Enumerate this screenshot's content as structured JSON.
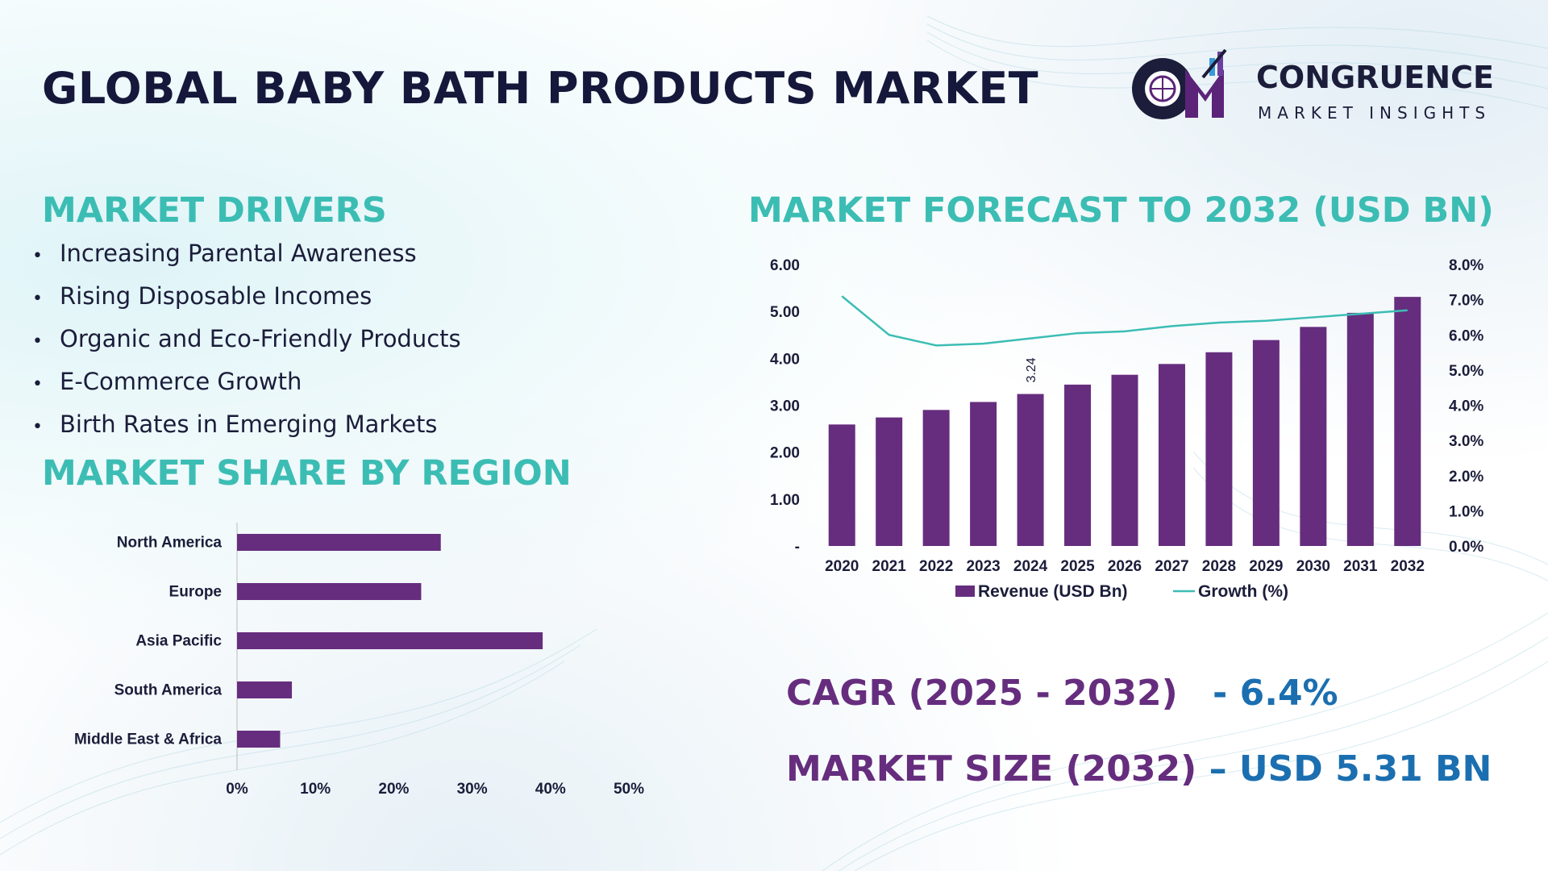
{
  "header": {
    "title": "GLOBAL BABY BATH PRODUCTS MARKET"
  },
  "logo": {
    "line1": "CONGRUENCE",
    "line2": "MARKET INSIGHTS",
    "mark_color": "#5b2479"
  },
  "colors": {
    "accent": "#3cbdb4",
    "bar": "#662d7e",
    "growth_line": "#3cbdb4",
    "stat_value": "#1b6fb0",
    "title": "#15183a"
  },
  "drivers": {
    "title": "MARKET DRIVERS",
    "items": [
      "Increasing Parental Awareness",
      "Rising Disposable Incomes",
      "Organic and Eco-Friendly Products",
      "E-Commerce Growth",
      "Birth Rates in Emerging Markets"
    ]
  },
  "region": {
    "title": "MARKET SHARE BY REGION"
  },
  "forecast": {
    "title": "MARKET FORECAST TO 2032 (USD BN)"
  },
  "stats": {
    "cagr_label": "CAGR (2025 - 2032)",
    "cagr_value": "- 6.4%",
    "size_label": "MARKET SIZE (2032)",
    "size_value": "– USD 5.31 BN"
  },
  "chart_data": [
    {
      "type": "bar",
      "orientation": "horizontal",
      "categories": [
        "North America",
        "Europe",
        "Asia Pacific",
        "South America",
        "Middle East & Africa"
      ],
      "values": [
        26,
        23.5,
        39,
        7,
        5.5
      ],
      "xlim": [
        0,
        50
      ],
      "x_ticks": [
        "0%",
        "10%",
        "20%",
        "30%",
        "40%",
        "50%"
      ],
      "x_tick_values": [
        0,
        10,
        20,
        30,
        40,
        50
      ],
      "grid": false
    },
    {
      "type": "bar",
      "categories": [
        "2020",
        "2021",
        "2022",
        "2023",
        "2024",
        "2025",
        "2026",
        "2027",
        "2028",
        "2029",
        "2030",
        "2031",
        "2032"
      ],
      "series": [
        {
          "name": "Revenue (USD Bn)",
          "type": "bar",
          "axis": "left",
          "values": [
            2.59,
            2.74,
            2.9,
            3.07,
            3.24,
            3.44,
            3.65,
            3.88,
            4.13,
            4.39,
            4.67,
            4.97,
            5.31
          ]
        },
        {
          "name": "Growth (%)",
          "type": "line",
          "axis": "right",
          "values": [
            7.1,
            6.0,
            5.7,
            5.75,
            5.9,
            6.05,
            6.1,
            6.25,
            6.35,
            6.4,
            6.5,
            6.6,
            6.7
          ]
        }
      ],
      "data_labels": [
        {
          "index": 4,
          "text": "3.24"
        }
      ],
      "ylim_left": [
        0,
        6
      ],
      "y_left_ticks": [
        "-",
        "1.00",
        "2.00",
        "3.00",
        "4.00",
        "5.00",
        "6.00"
      ],
      "ylim_right": [
        0,
        8
      ],
      "y_right_ticks": [
        "0.0%",
        "1.0%",
        "2.0%",
        "3.0%",
        "4.0%",
        "5.0%",
        "6.0%",
        "7.0%",
        "8.0%"
      ],
      "legend_position": "bottom",
      "grid": false
    }
  ]
}
